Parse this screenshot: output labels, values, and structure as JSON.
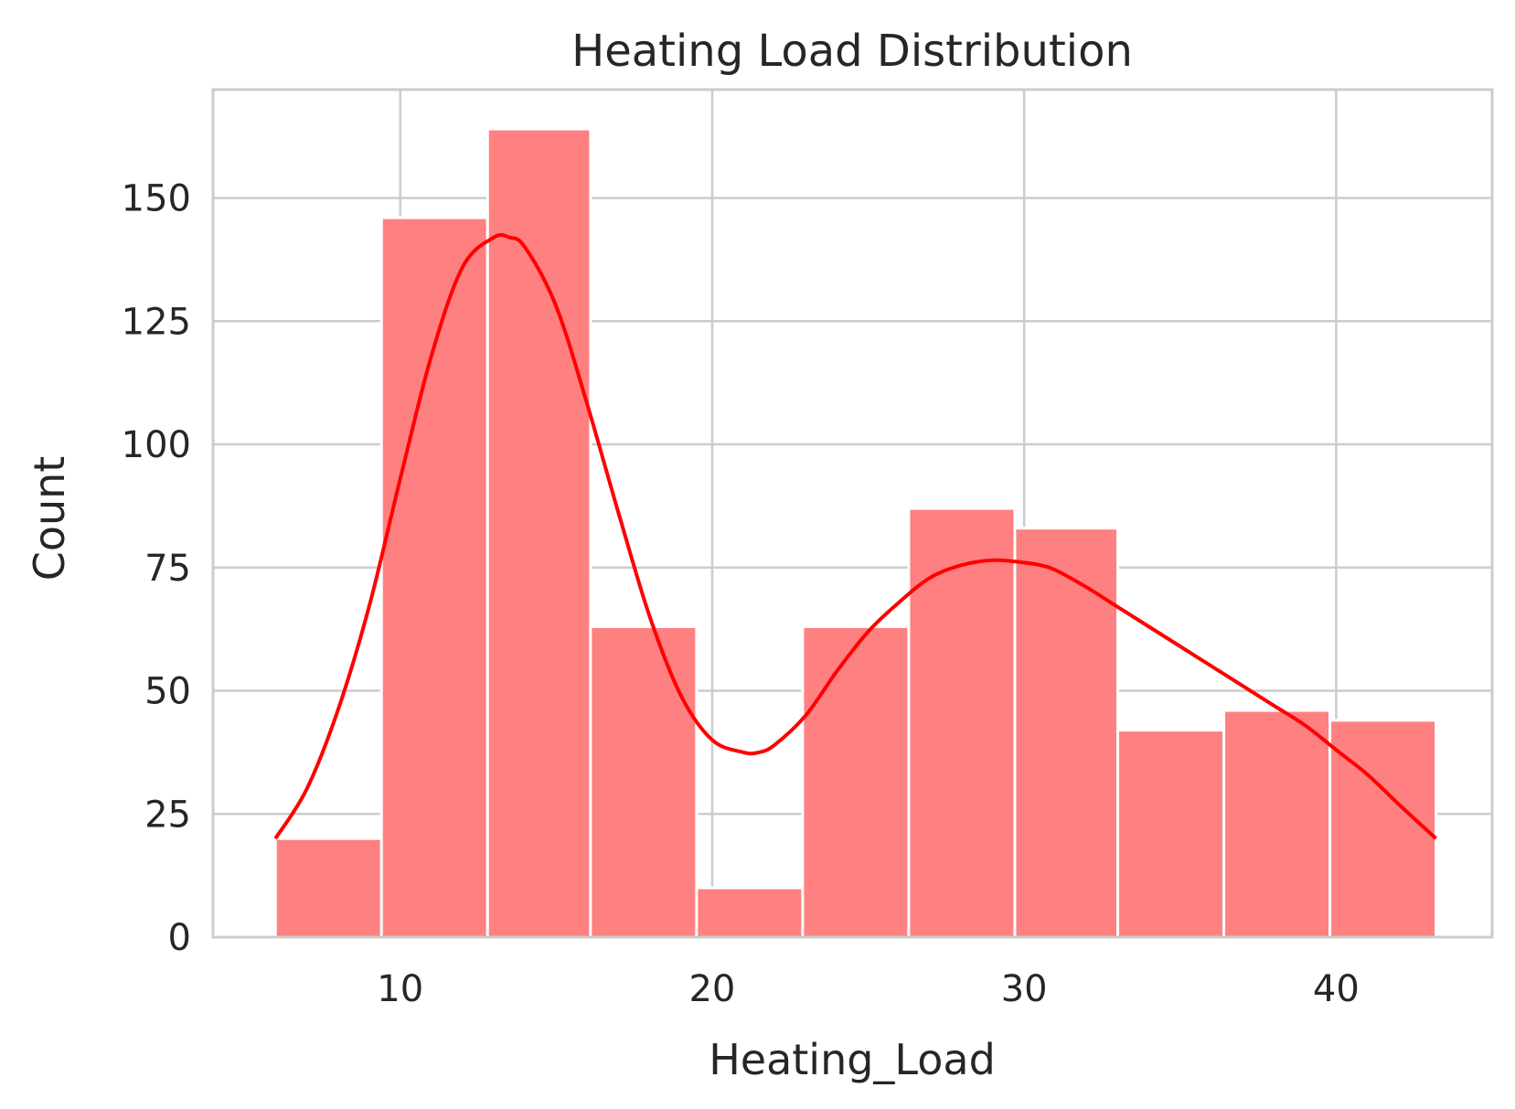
{
  "chart_data": {
    "type": "bar",
    "title": "Heating Load Distribution",
    "xlabel": "Heating_Load",
    "ylabel": "Count",
    "xlim": [
      4.0,
      45.0
    ],
    "ylim": [
      0,
      172
    ],
    "xticks": [
      10,
      20,
      30,
      40
    ],
    "yticks": [
      0,
      25,
      50,
      75,
      100,
      125,
      150
    ],
    "grid": true,
    "bar_color": "#ff8080",
    "kde_color": "#ff0000",
    "bins": [
      {
        "x0": 6.0,
        "x1": 9.4,
        "count": 20
      },
      {
        "x0": 9.4,
        "x1": 12.8,
        "count": 146
      },
      {
        "x0": 12.8,
        "x1": 16.1,
        "count": 164
      },
      {
        "x0": 16.1,
        "x1": 19.5,
        "count": 63
      },
      {
        "x0": 19.5,
        "x1": 22.9,
        "count": 10
      },
      {
        "x0": 22.9,
        "x1": 26.3,
        "count": 63
      },
      {
        "x0": 26.3,
        "x1": 29.7,
        "count": 87
      },
      {
        "x0": 29.7,
        "x1": 33.0,
        "count": 83
      },
      {
        "x0": 33.0,
        "x1": 36.4,
        "count": 42
      },
      {
        "x0": 36.4,
        "x1": 39.8,
        "count": 46
      },
      {
        "x0": 39.8,
        "x1": 43.2,
        "count": 44
      }
    ],
    "kde": {
      "x": [
        6.0,
        7.0,
        8.0,
        9.0,
        10.0,
        11.0,
        12.0,
        13.0,
        13.5,
        14.0,
        15.0,
        16.0,
        17.0,
        18.0,
        19.0,
        20.0,
        21.0,
        21.5,
        22.0,
        23.0,
        24.0,
        25.0,
        26.0,
        27.0,
        28.0,
        29.0,
        30.0,
        30.5,
        31.0,
        32.0,
        33.0,
        34.0,
        35.0,
        36.0,
        37.0,
        38.0,
        39.0,
        40.0,
        41.0,
        42.0,
        43.2
      ],
      "y": [
        20,
        30,
        46,
        67,
        93,
        118,
        136,
        142,
        142,
        140,
        128,
        108,
        86,
        65,
        49,
        40,
        37.5,
        37.5,
        39,
        45,
        54,
        62,
        68,
        73,
        75.5,
        76.5,
        76,
        75.5,
        74.5,
        71,
        67,
        63,
        59,
        55,
        51,
        47,
        43,
        38,
        33,
        27,
        20
      ]
    }
  }
}
